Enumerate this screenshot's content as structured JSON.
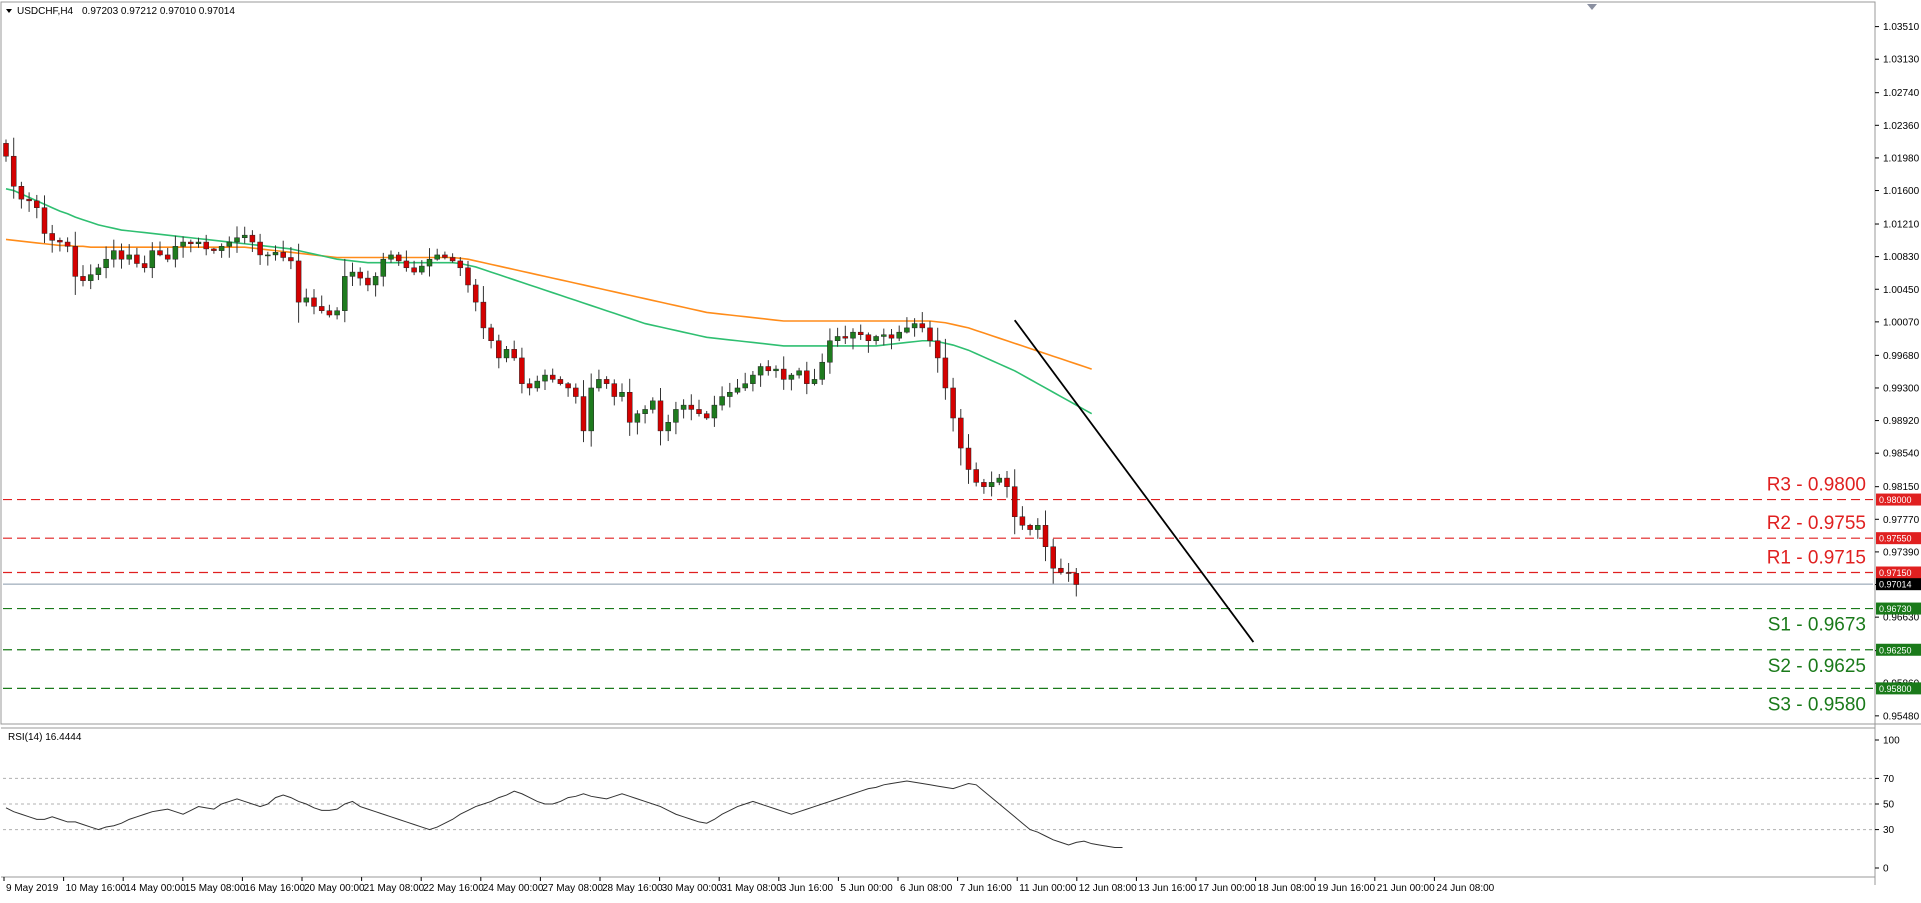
{
  "header": {
    "symbol": "USDCHF,H4",
    "ohlc": "0.97203 0.97212 0.97010 0.97014"
  },
  "rsi_header": "RSI(14) 16.4444",
  "colors": {
    "bull": "#1e7b1e",
    "bear": "#d40000",
    "ma_fast": "#2fbf71",
    "ma_slow": "#ff8c1a",
    "resistance": "#e02020",
    "support": "#1a7a1a",
    "trendline": "#000000",
    "rsi_line": "#333333",
    "current_price": "#8899aa"
  },
  "chart_data": [
    {
      "type": "candlestick",
      "title": "USDCHF,H4",
      "x_ticks": [
        "9 May 2019",
        "10 May 16:00",
        "14 May 00:00",
        "15 May 08:00",
        "16 May 16:00",
        "20 May 00:00",
        "21 May 08:00",
        "22 May 16:00",
        "24 May 00:00",
        "27 May 08:00",
        "28 May 16:00",
        "30 May 00:00",
        "31 May 08:00",
        "3 Jun 16:00",
        "5 Jun 00:00",
        "6 Jun 08:00",
        "7 Jun 16:00",
        "11 Jun 00:00",
        "12 Jun 08:00",
        "13 Jun 16:00",
        "17 Jun 00:00",
        "18 Jun 08:00",
        "19 Jun 16:00",
        "21 Jun 00:00",
        "24 Jun 08:00"
      ],
      "y_ticks": [
        1.0351,
        1.0313,
        1.0274,
        1.0236,
        1.0198,
        1.016,
        1.0121,
        1.0083,
        1.0045,
        1.0007,
        0.9968,
        0.993,
        0.9892,
        0.9854,
        0.9815,
        0.9777,
        0.9739,
        0.9701,
        0.9663,
        0.9624,
        0.9586,
        0.9548
      ],
      "y_tick_labels": [
        "1.03510",
        "1.03130",
        "1.02740",
        "1.02360",
        "1.01980",
        "1.01600",
        "1.01210",
        "1.00830",
        "1.00450",
        "1.00070",
        "0.99680",
        "0.99300",
        "0.98920",
        "0.98540",
        "0.98150",
        "0.97770",
        "0.97390",
        "0.97010",
        "0.96630",
        "0.96240",
        "0.95860",
        "0.95480"
      ],
      "ylim": [
        0.9542,
        1.0375
      ],
      "closes": [
        1.02,
        1.0165,
        1.015,
        1.0148,
        1.014,
        1.011,
        1.0102,
        1.01,
        1.0095,
        1.006,
        1.0055,
        1.0062,
        1.007,
        1.008,
        1.009,
        1.008,
        1.0085,
        1.0075,
        1.007,
        1.009,
        1.0085,
        1.008,
        1.0095,
        1.01,
        1.0098,
        1.01,
        1.0092,
        1.009,
        1.0095,
        1.01,
        1.0105,
        1.0108,
        1.01,
        1.0085,
        1.0085,
        1.0088,
        1.0082,
        1.0078,
        1.003,
        1.0035,
        1.0025,
        1.002,
        1.0015,
        1.002,
        1.006,
        1.0065,
        1.0058,
        1.005,
        1.006,
        1.008,
        1.0085,
        1.0078,
        1.007,
        1.0065,
        1.0072,
        1.008,
        1.0085,
        1.0082,
        1.0078,
        1.007,
        1.005,
        1.003,
        1.0,
        0.9985,
        0.9965,
        0.9975,
        0.9965,
        0.9935,
        0.993,
        0.9938,
        0.9945,
        0.994,
        0.9935,
        0.993,
        0.992,
        0.988,
        0.993,
        0.994,
        0.9935,
        0.992,
        0.9925,
        0.989,
        0.99,
        0.9905,
        0.9915,
        0.988,
        0.989,
        0.9905,
        0.991,
        0.9905,
        0.99,
        0.9895,
        0.991,
        0.992,
        0.9925,
        0.993,
        0.9935,
        0.9945,
        0.9955,
        0.995,
        0.9952,
        0.994,
        0.9945,
        0.995,
        0.9935,
        0.994,
        0.996,
        0.9985,
        0.999,
        0.9988,
        0.9995,
        0.9992,
        0.9985,
        0.999,
        0.9992,
        0.9988,
        0.9995,
        1.0,
        1.0005,
        1.0,
        0.9985,
        0.9965,
        0.993,
        0.9895,
        0.986,
        0.9835,
        0.982,
        0.9815,
        0.982,
        0.9825,
        0.9815,
        0.978,
        0.977,
        0.9765,
        0.977,
        0.9745,
        0.972,
        0.9715,
        0.9714,
        0.9701
      ],
      "ma_fast": [
        1.0162,
        1.016,
        1.0156,
        1.0152,
        1.0148,
        1.0144,
        1.014,
        1.0136,
        1.0133,
        1.0129,
        1.0126,
        1.0123,
        1.012,
        1.0118,
        1.0116,
        1.0114,
        1.0113,
        1.0112,
        1.0111,
        1.011,
        1.0109,
        1.0108,
        1.0107,
        1.0106,
        1.0105,
        1.0104,
        1.0103,
        1.0102,
        1.0101,
        1.01,
        1.0099,
        1.0098,
        1.0097,
        1.0096,
        1.0095,
        1.0094,
        1.0093,
        1.0092,
        1.009,
        1.0088,
        1.0086,
        1.0084,
        1.0082,
        1.008,
        1.0079,
        1.0078,
        1.0077,
        1.0076,
        1.0076,
        1.0076,
        1.0076,
        1.0076,
        1.0076,
        1.0076,
        1.0076,
        1.0076,
        1.0076,
        1.0076,
        1.0076,
        1.0075,
        1.0073,
        1.0071,
        1.0068,
        1.0065,
        1.0062,
        1.0059,
        1.0056,
        1.0053,
        1.005,
        1.0047,
        1.0044,
        1.0041,
        1.0038,
        1.0035,
        1.0032,
        1.0029,
        1.0026,
        1.0023,
        1.002,
        1.0017,
        1.0014,
        1.0011,
        1.0008,
        1.0005,
        1.0003,
        1.0001,
        0.9999,
        0.9997,
        0.9995,
        0.9993,
        0.9991,
        0.9989,
        0.9988,
        0.9987,
        0.9986,
        0.9985,
        0.9984,
        0.9983,
        0.9982,
        0.9981,
        0.998,
        0.9979,
        0.9979,
        0.9979,
        0.9979,
        0.9979,
        0.9979,
        0.9979,
        0.9979,
        0.9979,
        0.9979,
        0.9979,
        0.9979,
        0.9979,
        0.998,
        0.9981,
        0.9982,
        0.9983,
        0.9984,
        0.9985,
        0.9985,
        0.9984,
        0.9982,
        0.998,
        0.9977,
        0.9974,
        0.997,
        0.9966,
        0.9962,
        0.9958,
        0.9954,
        0.995,
        0.9945,
        0.994,
        0.9935,
        0.993,
        0.9925,
        0.992,
        0.9915,
        0.991,
        0.9905,
        0.99
      ],
      "ma_slow": [
        1.0103,
        1.0102,
        1.0101,
        1.01,
        1.0099,
        1.0098,
        1.0097,
        1.0096,
        1.0096,
        1.0095,
        1.0095,
        1.0094,
        1.0094,
        1.0094,
        1.0094,
        1.0094,
        1.0094,
        1.0094,
        1.0094,
        1.0094,
        1.0094,
        1.0094,
        1.0094,
        1.0094,
        1.0094,
        1.0094,
        1.0094,
        1.0094,
        1.0094,
        1.0094,
        1.0094,
        1.0094,
        1.0093,
        1.0092,
        1.0091,
        1.009,
        1.0089,
        1.0088,
        1.0087,
        1.0086,
        1.0085,
        1.0084,
        1.0083,
        1.0082,
        1.0082,
        1.0082,
        1.0082,
        1.0082,
        1.0082,
        1.0082,
        1.0082,
        1.0082,
        1.0082,
        1.0082,
        1.0082,
        1.0082,
        1.0082,
        1.0082,
        1.0082,
        1.0081,
        1.008,
        1.0078,
        1.0076,
        1.0074,
        1.0072,
        1.007,
        1.0068,
        1.0066,
        1.0064,
        1.0062,
        1.006,
        1.0058,
        1.0056,
        1.0054,
        1.0052,
        1.005,
        1.0048,
        1.0046,
        1.0044,
        1.0042,
        1.004,
        1.0038,
        1.0036,
        1.0034,
        1.0032,
        1.003,
        1.0028,
        1.0026,
        1.0024,
        1.0022,
        1.002,
        1.0018,
        1.0017,
        1.0016,
        1.0015,
        1.0014,
        1.0013,
        1.0012,
        1.0011,
        1.001,
        1.0009,
        1.0008,
        1.0008,
        1.0008,
        1.0008,
        1.0008,
        1.0008,
        1.0008,
        1.0008,
        1.0008,
        1.0008,
        1.0008,
        1.0008,
        1.0008,
        1.0008,
        1.0008,
        1.0008,
        1.0008,
        1.0008,
        1.0008,
        1.0008,
        1.0007,
        1.0006,
        1.0004,
        1.0002,
        1.0,
        0.9997,
        0.9994,
        0.9991,
        0.9988,
        0.9985,
        0.9982,
        0.9979,
        0.9976,
        0.9973,
        0.997,
        0.9967,
        0.9964,
        0.9961,
        0.9958,
        0.9955,
        0.9952
      ],
      "levels": [
        {
          "label": "R3 - 0.9800",
          "tag": "0.98000",
          "value": 0.98,
          "kind": "resistance"
        },
        {
          "label": "R2 - 0.9755",
          "tag": "0.97550",
          "value": 0.9755,
          "kind": "resistance"
        },
        {
          "label": "R1 - 0.9715",
          "tag": "0.97150",
          "value": 0.9715,
          "kind": "resistance"
        },
        {
          "label": "S1 - 0.9673",
          "tag": "0.96730",
          "value": 0.9673,
          "kind": "support"
        },
        {
          "label": "S2 - 0.9625",
          "tag": "0.96250",
          "value": 0.9625,
          "kind": "support"
        },
        {
          "label": "S3 - 0.9580",
          "tag": "0.95800",
          "value": 0.958,
          "kind": "support"
        }
      ],
      "current_price": {
        "tag": "0.97014",
        "value": 0.97014
      },
      "trendline": {
        "from": {
          "bar": 131,
          "price": 1.0009
        },
        "to": {
          "bar": 162,
          "price": 0.9634
        }
      }
    },
    {
      "type": "line",
      "title": "RSI(14) 16.4444",
      "y_ticks": [
        100,
        70,
        50,
        30,
        0
      ],
      "y_tick_labels": [
        "100",
        "70",
        "50",
        "30",
        "0"
      ],
      "ylim": [
        0,
        100
      ],
      "levels": [
        70,
        50,
        30
      ],
      "values": [
        47,
        44,
        42,
        40,
        38,
        38,
        40,
        38,
        36,
        36,
        34,
        32,
        30,
        32,
        33,
        35,
        38,
        40,
        42,
        44,
        45,
        46,
        44,
        42,
        45,
        48,
        47,
        46,
        50,
        52,
        54,
        52,
        50,
        48,
        50,
        55,
        57,
        55,
        52,
        50,
        47,
        45,
        45,
        46,
        50,
        52,
        48,
        46,
        44,
        42,
        40,
        38,
        36,
        34,
        32,
        30,
        32,
        35,
        38,
        42,
        45,
        48,
        50,
        52,
        55,
        57,
        60,
        58,
        55,
        52,
        50,
        50,
        52,
        55,
        56,
        58,
        56,
        55,
        54,
        56,
        58,
        56,
        54,
        52,
        50,
        48,
        45,
        42,
        40,
        38,
        36,
        35,
        38,
        42,
        45,
        48,
        50,
        52,
        50,
        48,
        46,
        44,
        42,
        44,
        46,
        48,
        50,
        52,
        54,
        56,
        58,
        60,
        62,
        63,
        65,
        66,
        67,
        68,
        67,
        66,
        65,
        64,
        63,
        62,
        64,
        66,
        65,
        60,
        55,
        50,
        45,
        40,
        35,
        30,
        28,
        25,
        22,
        20,
        18,
        20,
        21,
        19,
        18,
        17,
        16,
        16
      ]
    }
  ]
}
